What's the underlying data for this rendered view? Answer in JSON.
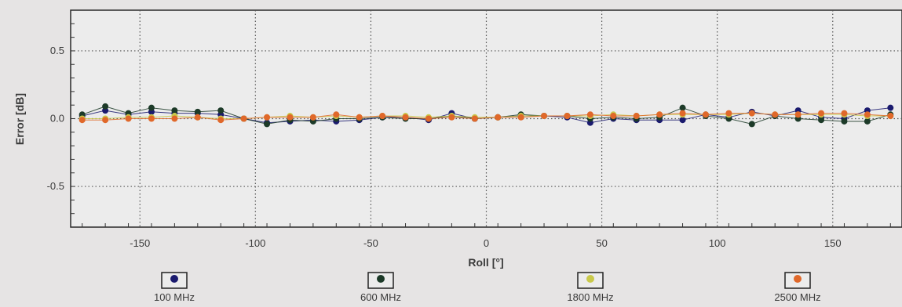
{
  "chart_data": {
    "type": "line",
    "xlabel": "Roll [°]",
    "ylabel": "Error [dB]",
    "xlim": [
      -180,
      180
    ],
    "ylim": [
      -0.8,
      0.8
    ],
    "x_ticks": [
      -150,
      -100,
      -50,
      0,
      50,
      100,
      150
    ],
    "y_ticks": [
      0.5,
      0.0,
      -0.5
    ],
    "x_tick_labels": [
      "-150",
      "-100",
      "-50",
      "0",
      "50",
      "100",
      "150"
    ],
    "y_tick_labels": [
      "0.5",
      "0.0",
      "-0.5"
    ],
    "grid": true,
    "legend_position": "bottom",
    "x": [
      -175,
      -165,
      -155,
      -145,
      -135,
      -125,
      -115,
      -105,
      -95,
      -85,
      -75,
      -65,
      -55,
      -45,
      -35,
      -25,
      -15,
      -5,
      5,
      15,
      25,
      35,
      45,
      55,
      65,
      75,
      85,
      95,
      105,
      115,
      125,
      135,
      145,
      155,
      165,
      175
    ],
    "series": [
      {
        "name": "100 MHz",
        "color": "#1a1a6e",
        "values": [
          0.02,
          0.06,
          0.03,
          0.05,
          0.04,
          0.04,
          0.03,
          0.0,
          -0.03,
          -0.02,
          -0.01,
          -0.02,
          -0.01,
          0.01,
          0.01,
          -0.01,
          0.04,
          0.0,
          0.01,
          0.02,
          0.02,
          0.01,
          -0.03,
          0.0,
          -0.01,
          -0.01,
          -0.01,
          0.03,
          0.01,
          0.05,
          0.02,
          0.06,
          0.01,
          0.0,
          0.06,
          0.08
        ]
      },
      {
        "name": "600 MHz",
        "color": "#1c3a28",
        "values": [
          0.03,
          0.09,
          0.04,
          0.08,
          0.06,
          0.05,
          0.06,
          0.0,
          -0.04,
          -0.01,
          -0.02,
          0.0,
          0.0,
          0.01,
          0.0,
          0.0,
          0.02,
          0.0,
          0.01,
          0.03,
          0.02,
          0.02,
          0.0,
          0.01,
          0.0,
          0.01,
          0.08,
          0.02,
          0.0,
          -0.04,
          0.02,
          0.0,
          -0.01,
          -0.02,
          -0.02,
          0.03
        ]
      },
      {
        "name": "1800 MHz",
        "color": "#c9c94a",
        "values": [
          0.0,
          0.0,
          0.01,
          0.01,
          0.02,
          0.01,
          0.0,
          0.0,
          0.01,
          0.02,
          0.01,
          0.02,
          0.01,
          0.02,
          0.02,
          0.01,
          0.02,
          0.01,
          0.01,
          0.02,
          0.02,
          0.02,
          0.02,
          0.03,
          0.02,
          0.03,
          0.03,
          0.03,
          0.03,
          0.04,
          0.03,
          0.03,
          0.03,
          0.03,
          0.02,
          0.02
        ]
      },
      {
        "name": "2500 MHz",
        "color": "#e0682a",
        "values": [
          -0.01,
          -0.01,
          0.0,
          0.0,
          0.0,
          0.01,
          -0.01,
          0.0,
          0.01,
          0.01,
          0.01,
          0.03,
          0.01,
          0.02,
          0.01,
          0.0,
          0.01,
          0.0,
          0.01,
          0.01,
          0.02,
          0.02,
          0.03,
          0.02,
          0.02,
          0.03,
          0.04,
          0.03,
          0.04,
          0.04,
          0.03,
          0.03,
          0.04,
          0.04,
          0.03,
          0.02
        ]
      }
    ]
  }
}
